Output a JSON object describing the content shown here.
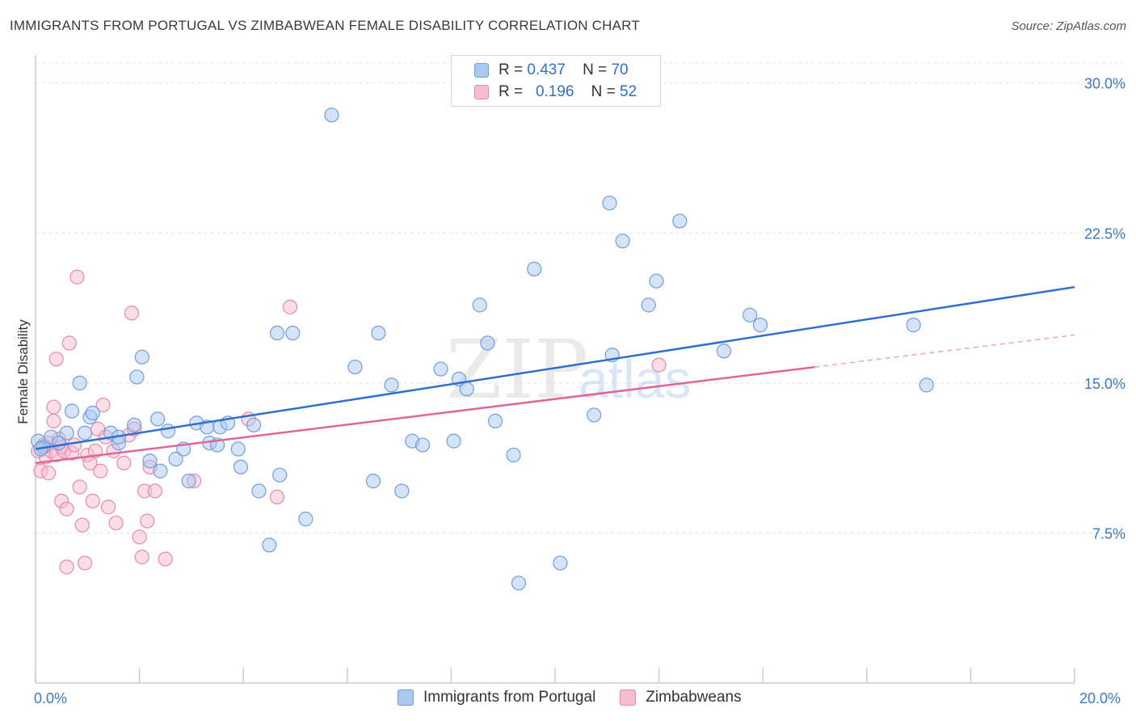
{
  "title": "IMMIGRANTS FROM PORTUGAL VS ZIMBABWEAN FEMALE DISABILITY CORRELATION CHART",
  "source": "Source: ZipAtlas.com",
  "watermark": {
    "zip": "ZIP",
    "atlas": "atlas"
  },
  "legend": {
    "rows": [
      {
        "r_label": "R =",
        "r_value": "0.437",
        "n_label": "N =",
        "n_value": "70"
      },
      {
        "r_label": "R =",
        "r_value": "0.196",
        "n_label": "N =",
        "n_value": "52"
      }
    ]
  },
  "bottom_legend": [
    {
      "label": "Immigrants from Portugal"
    },
    {
      "label": "Zimbabweans"
    }
  ],
  "colors": {
    "blue_fill": "#a9c8f2",
    "blue_stroke": "#6f9fd9",
    "blue_line": "#2f6fd0",
    "pink_fill": "#f7bcd0",
    "pink_stroke": "#e88aab",
    "pink_line": "#e0669a",
    "tick_text": "#3b78c8",
    "grid": "#e0e0e0"
  },
  "chart_data": {
    "type": "scatter",
    "title": "IMMIGRANTS FROM PORTUGAL VS ZIMBABWEAN FEMALE DISABILITY CORRELATION CHART",
    "xlabel": "",
    "ylabel": "Female Disability",
    "xlim": [
      0,
      20
    ],
    "ylim": [
      0,
      31
    ],
    "x_tick_labels": [
      "0.0%",
      "20.0%"
    ],
    "y_tick_labels": [
      {
        "value": 7.5,
        "label": "7.5%"
      },
      {
        "value": 15.0,
        "label": "15.0%"
      },
      {
        "value": 22.5,
        "label": "22.5%"
      },
      {
        "value": 30.0,
        "label": "30.0%"
      }
    ],
    "grid": true,
    "legend_position": "top-center",
    "series": [
      {
        "name": "Immigrants from Portugal",
        "color": "#a9c8f2",
        "trend": {
          "x": [
            0,
            20
          ],
          "y": [
            11.7,
            19.8
          ]
        },
        "points": [
          [
            0.05,
            12.1
          ],
          [
            0.15,
            11.8
          ],
          [
            0.3,
            12.3
          ],
          [
            0.45,
            12.0
          ],
          [
            0.6,
            12.5
          ],
          [
            0.7,
            13.6
          ],
          [
            0.85,
            15.0
          ],
          [
            0.95,
            12.5
          ],
          [
            1.05,
            13.3
          ],
          [
            1.1,
            13.5
          ],
          [
            1.45,
            12.5
          ],
          [
            1.6,
            12.0
          ],
          [
            1.6,
            12.3
          ],
          [
            1.9,
            12.9
          ],
          [
            1.95,
            15.3
          ],
          [
            2.05,
            16.3
          ],
          [
            2.2,
            11.1
          ],
          [
            2.35,
            13.2
          ],
          [
            2.4,
            10.6
          ],
          [
            2.55,
            12.6
          ],
          [
            2.7,
            11.2
          ],
          [
            2.85,
            11.7
          ],
          [
            2.95,
            10.1
          ],
          [
            3.1,
            13.0
          ],
          [
            3.3,
            12.8
          ],
          [
            3.35,
            12.0
          ],
          [
            3.5,
            11.9
          ],
          [
            3.55,
            12.8
          ],
          [
            3.7,
            13.0
          ],
          [
            3.9,
            11.7
          ],
          [
            3.95,
            10.8
          ],
          [
            4.2,
            12.9
          ],
          [
            4.3,
            9.6
          ],
          [
            4.5,
            6.9
          ],
          [
            4.65,
            17.5
          ],
          [
            4.7,
            10.4
          ],
          [
            4.95,
            17.5
          ],
          [
            5.2,
            8.2
          ],
          [
            5.7,
            28.4
          ],
          [
            6.15,
            15.8
          ],
          [
            6.5,
            10.1
          ],
          [
            6.6,
            17.5
          ],
          [
            6.85,
            14.9
          ],
          [
            7.05,
            9.6
          ],
          [
            7.25,
            12.1
          ],
          [
            7.45,
            11.9
          ],
          [
            7.8,
            15.7
          ],
          [
            8.05,
            12.1
          ],
          [
            8.15,
            15.2
          ],
          [
            8.3,
            14.7
          ],
          [
            8.55,
            18.9
          ],
          [
            8.7,
            17.0
          ],
          [
            8.85,
            13.1
          ],
          [
            9.2,
            11.4
          ],
          [
            9.3,
            5.0
          ],
          [
            9.6,
            20.7
          ],
          [
            10.1,
            6.0
          ],
          [
            10.75,
            13.4
          ],
          [
            11.05,
            24.0
          ],
          [
            11.1,
            16.4
          ],
          [
            11.3,
            22.1
          ],
          [
            11.8,
            18.9
          ],
          [
            11.95,
            20.1
          ],
          [
            12.4,
            23.1
          ],
          [
            13.25,
            16.6
          ],
          [
            13.75,
            18.4
          ],
          [
            13.95,
            17.9
          ],
          [
            16.9,
            17.9
          ],
          [
            17.15,
            14.9
          ],
          [
            0.1,
            11.7
          ]
        ]
      },
      {
        "name": "Zimbabweans",
        "color": "#f7bcd0",
        "trend": {
          "x": [
            0,
            15
          ],
          "y": [
            11.0,
            15.8
          ]
        },
        "trend_dashed": {
          "x": [
            15,
            20
          ],
          "y": [
            15.8,
            17.4
          ]
        },
        "points": [
          [
            0.05,
            11.6
          ],
          [
            0.1,
            10.6
          ],
          [
            0.15,
            11.8
          ],
          [
            0.2,
            11.3
          ],
          [
            0.25,
            10.5
          ],
          [
            0.25,
            12.0
          ],
          [
            0.3,
            11.6
          ],
          [
            0.35,
            13.8
          ],
          [
            0.35,
            13.1
          ],
          [
            0.4,
            16.2
          ],
          [
            0.4,
            11.4
          ],
          [
            0.45,
            12.2
          ],
          [
            0.5,
            11.8
          ],
          [
            0.5,
            9.1
          ],
          [
            0.55,
            11.6
          ],
          [
            0.6,
            5.8
          ],
          [
            0.6,
            8.7
          ],
          [
            0.65,
            17.0
          ],
          [
            0.7,
            11.5
          ],
          [
            0.75,
            11.9
          ],
          [
            0.8,
            20.3
          ],
          [
            0.85,
            9.8
          ],
          [
            0.9,
            7.9
          ],
          [
            0.95,
            6.0
          ],
          [
            1.0,
            11.4
          ],
          [
            1.05,
            11.0
          ],
          [
            1.1,
            9.1
          ],
          [
            1.15,
            11.6
          ],
          [
            1.2,
            12.7
          ],
          [
            1.25,
            10.6
          ],
          [
            1.3,
            13.9
          ],
          [
            1.35,
            12.3
          ],
          [
            1.4,
            8.8
          ],
          [
            1.5,
            11.6
          ],
          [
            1.55,
            8.0
          ],
          [
            1.7,
            11.0
          ],
          [
            1.8,
            12.4
          ],
          [
            1.85,
            18.5
          ],
          [
            1.9,
            12.7
          ],
          [
            2.0,
            7.3
          ],
          [
            2.05,
            6.3
          ],
          [
            2.1,
            9.6
          ],
          [
            2.15,
            8.1
          ],
          [
            2.2,
            10.8
          ],
          [
            2.3,
            9.6
          ],
          [
            2.5,
            6.2
          ],
          [
            3.05,
            10.1
          ],
          [
            4.1,
            13.2
          ],
          [
            4.65,
            9.3
          ],
          [
            4.9,
            18.8
          ],
          [
            12.0,
            15.9
          ],
          [
            0.15,
            11.9
          ]
        ]
      }
    ]
  }
}
